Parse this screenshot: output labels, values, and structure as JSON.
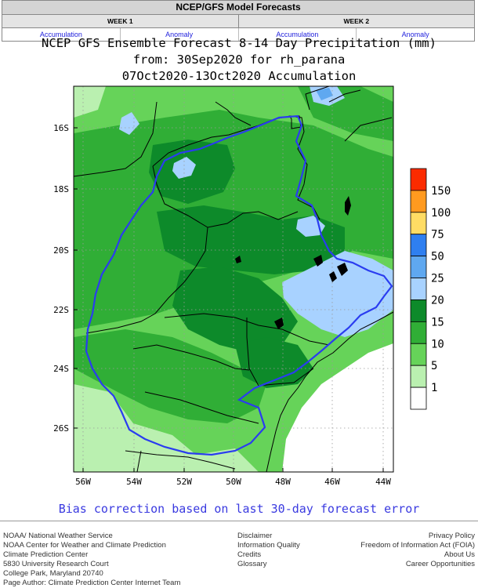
{
  "header": {
    "title": "NCEP/GFS Model Forecasts",
    "week1": "WEEK 1",
    "week2": "WEEK 2",
    "links": [
      "Accumulation",
      "Anomaly",
      "Accumulation",
      "Anomaly"
    ]
  },
  "figure": {
    "title_line1": "NCEP GFS Ensemble Forecast 8-14 Day Precipitation (mm)",
    "title_line2": "from: 30Sep2020  for rh_parana",
    "title_line3": "07Oct2020-13Oct2020 Accumulation",
    "lat_labels": [
      "16S",
      "18S",
      "20S",
      "22S",
      "24S",
      "26S"
    ],
    "lon_labels": [
      "56W",
      "54W",
      "52W",
      "50W",
      "48W",
      "46W",
      "44W"
    ],
    "legend": {
      "labels": [
        "150",
        "100",
        "75",
        "50",
        "25",
        "20",
        "15",
        "10",
        "5",
        "1"
      ],
      "colors": [
        "#fb2b00",
        "#ff9a1f",
        "#ffdc64",
        "#2f7ff0",
        "#5fa8f0",
        "#a8d2ff",
        "#0d8a2a",
        "#30ae36",
        "#66d359",
        "#baf0b0",
        "#ffffff"
      ]
    },
    "fill_colors": {
      "dark_green": "#0d8a2a",
      "mid_green": "#30ae36",
      "light_green": "#66d359",
      "pale_green": "#baf0b0",
      "pale_blue": "#a8d2ff",
      "mid_blue": "#5fa8f0"
    },
    "bias_note": "Bias correction based on last 30-day forecast error"
  },
  "footer": {
    "col1": [
      "NOAA/ National Weather Service",
      "NOAA Center for Weather and Climate Prediction",
      "Climate Prediction Center",
      "5830 University Research Court",
      "College Park, Maryland 20740",
      "Page Author: Climate Prediction Center Internet Team"
    ],
    "col2": [
      "Disclaimer",
      "Information Quality",
      "Credits",
      "Glossary"
    ],
    "col3": [
      "Privacy Policy",
      "Freedom of Information Act (FOIA)",
      "About Us",
      "Career Opportunities"
    ]
  }
}
